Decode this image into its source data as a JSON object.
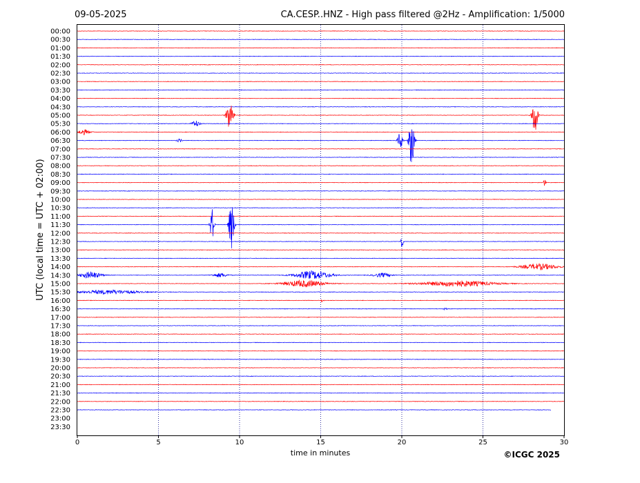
{
  "header": {
    "date": "09-05-2025",
    "title": "CA.CESP..HNZ - High pass filtered @2Hz - Amplification: 1/5000"
  },
  "footer": {
    "copyright": "©ICGC 2025"
  },
  "colors": {
    "red": "#ff0000",
    "blue": "#0000ff",
    "grid": "#00008b"
  },
  "chart_data": {
    "type": "line",
    "title": "CA.CESP..HNZ - High pass filtered @2Hz - Amplification: 1/5000",
    "xlabel": "time in minutes",
    "ylabel": "UTC (local time = UTC + 02:00)",
    "xlim": [
      0,
      30
    ],
    "xticks": [
      0,
      5,
      10,
      15,
      20,
      25,
      30
    ],
    "xtick_labels": [
      "0",
      "5",
      "10",
      "15",
      "20",
      "25",
      "30"
    ],
    "vertical_gridlines": [
      5,
      10,
      15,
      20,
      25
    ],
    "row_labels": [
      "00:00",
      "00:30",
      "01:00",
      "01:30",
      "02:00",
      "02:30",
      "03:00",
      "03:30",
      "04:00",
      "04:30",
      "05:00",
      "05:30",
      "06:00",
      "06:30",
      "07:00",
      "07:30",
      "08:00",
      "08:30",
      "09:00",
      "09:30",
      "10:00",
      "10:30",
      "11:00",
      "11:30",
      "12:00",
      "12:30",
      "13:00",
      "13:30",
      "14:00",
      "14:30",
      "15:00",
      "15:30",
      "16:00",
      "16:30",
      "17:00",
      "17:30",
      "18:00",
      "18:30",
      "19:00",
      "19:30",
      "20:00",
      "20:30",
      "21:00",
      "21:30",
      "22:00",
      "22:30",
      "23:00",
      "23:30"
    ],
    "row_colors": "alternating red/blue starting with red at 00:00",
    "last_trace_row": "22:30",
    "last_trace_end_minute": 29.2,
    "events": [
      {
        "row": "05:00",
        "minute": 9.4,
        "amplitude": 2.0,
        "duration": 0.5
      },
      {
        "row": "05:00",
        "minute": 28.2,
        "amplitude": 2.6,
        "duration": 0.4
      },
      {
        "row": "05:30",
        "minute": 7.3,
        "amplitude": 0.4,
        "duration": 0.6
      },
      {
        "row": "06:00",
        "minute": 0.4,
        "amplitude": 0.3,
        "duration": 1.0
      },
      {
        "row": "06:30",
        "minute": 6.3,
        "amplitude": 0.2,
        "duration": 0.4
      },
      {
        "row": "06:30",
        "minute": 19.9,
        "amplitude": 1.0,
        "duration": 0.4
      },
      {
        "row": "06:30",
        "minute": 20.6,
        "amplitude": 3.2,
        "duration": 0.4
      },
      {
        "row": "09:00",
        "minute": 28.8,
        "amplitude": 0.4,
        "duration": 0.2
      },
      {
        "row": "11:30",
        "minute": 8.3,
        "amplitude": 2.0,
        "duration": 0.3
      },
      {
        "row": "11:30",
        "minute": 9.5,
        "amplitude": 3.0,
        "duration": 0.4
      },
      {
        "row": "12:30",
        "minute": 20.0,
        "amplitude": 0.8,
        "duration": 0.2
      },
      {
        "row": "14:00",
        "minute": 28.5,
        "amplitude": 0.35,
        "duration": 3.0
      },
      {
        "row": "14:30",
        "minute": 0.8,
        "amplitude": 0.4,
        "duration": 1.8
      },
      {
        "row": "14:30",
        "minute": 14.5,
        "amplitude": 0.5,
        "duration": 3.0
      },
      {
        "row": "14:30",
        "minute": 8.8,
        "amplitude": 0.25,
        "duration": 1.2
      },
      {
        "row": "14:30",
        "minute": 18.8,
        "amplitude": 0.25,
        "duration": 1.5
      },
      {
        "row": "15:00",
        "minute": 14.0,
        "amplitude": 0.4,
        "duration": 3.5
      },
      {
        "row": "15:00",
        "minute": 23.5,
        "amplitude": 0.35,
        "duration": 6.0
      },
      {
        "row": "15:30",
        "minute": 2.0,
        "amplitude": 0.25,
        "duration": 5.0
      },
      {
        "row": "16:00",
        "minute": 15.1,
        "amplitude": 0.2,
        "duration": 0.2
      },
      {
        "row": "16:30",
        "minute": 22.7,
        "amplitude": 0.15,
        "duration": 0.3
      }
    ]
  }
}
